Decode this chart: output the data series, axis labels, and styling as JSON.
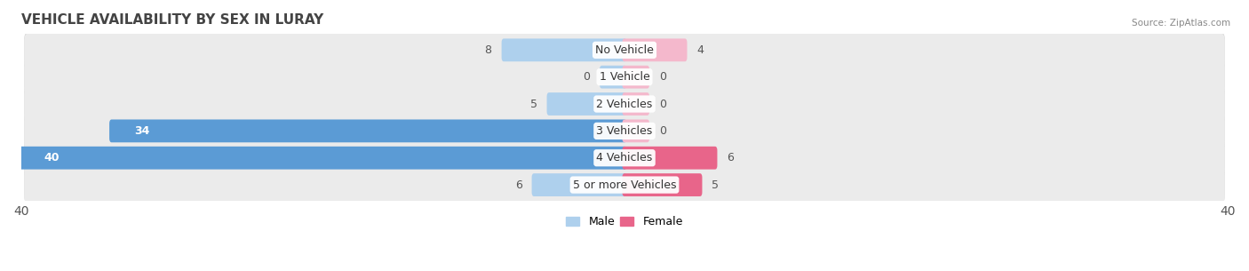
{
  "title": "VEHICLE AVAILABILITY BY SEX IN LURAY",
  "source": "Source: ZipAtlas.com",
  "categories": [
    "No Vehicle",
    "1 Vehicle",
    "2 Vehicles",
    "3 Vehicles",
    "4 Vehicles",
    "5 or more Vehicles"
  ],
  "male_values": [
    8,
    0,
    5,
    34,
    40,
    6
  ],
  "female_values": [
    4,
    0,
    0,
    0,
    6,
    5
  ],
  "male_color_strong": "#5b9bd5",
  "male_color_light": "#aed0ed",
  "female_color_strong": "#e8658a",
  "female_color_light": "#f4b8cc",
  "row_bg_color": "#ebebeb",
  "row_shadow_color": "#d0d0d0",
  "xlim": [
    -40,
    40
  ],
  "axis_label_fontsize": 10,
  "title_fontsize": 11,
  "bar_label_fontsize": 9,
  "category_fontsize": 9,
  "legend_fontsize": 9,
  "figure_bg": "#ffffff",
  "strong_thresh": 15,
  "female_strong_thresh": 5,
  "min_bar_display": 1.5
}
